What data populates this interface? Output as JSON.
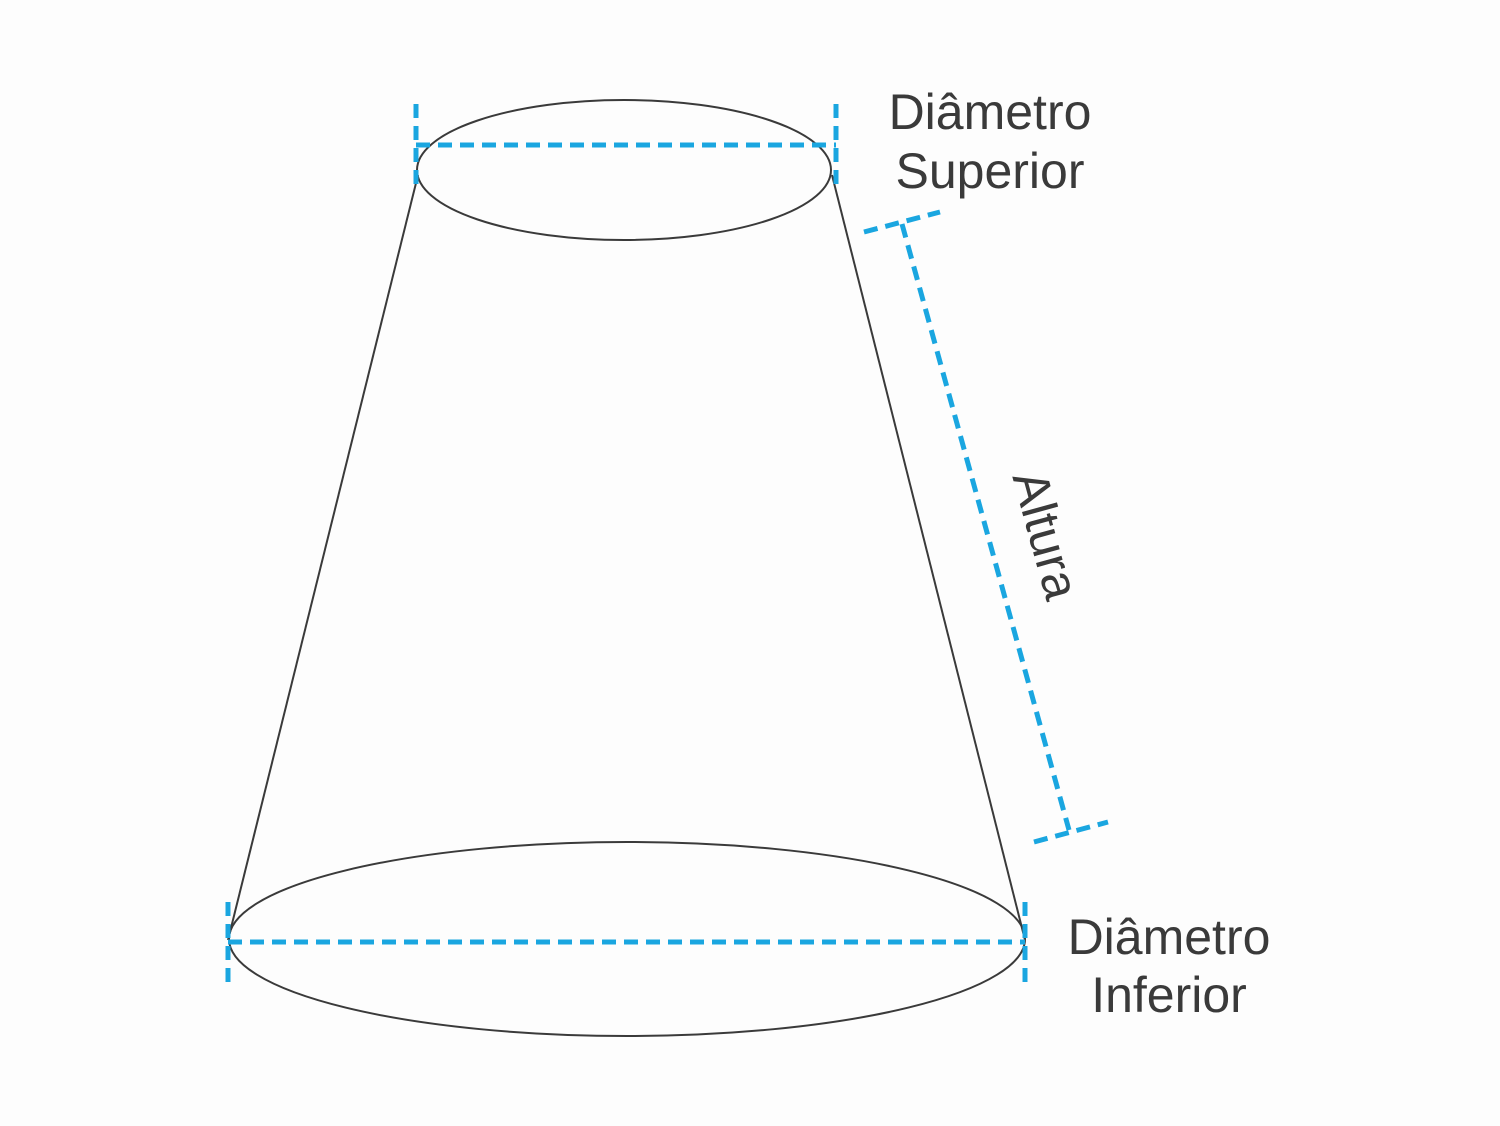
{
  "labels": {
    "top_diameter_line1": "Diâmetro",
    "top_diameter_line2": "Superior",
    "height": "Altura",
    "bottom_diameter_line1": "Diâmetro",
    "bottom_diameter_line2": "Inferior"
  },
  "colors": {
    "dimension_line": "#1aa6e0",
    "outline": "#3a3a3a",
    "text": "#3a3a3a",
    "background": "#fdfdfd"
  }
}
